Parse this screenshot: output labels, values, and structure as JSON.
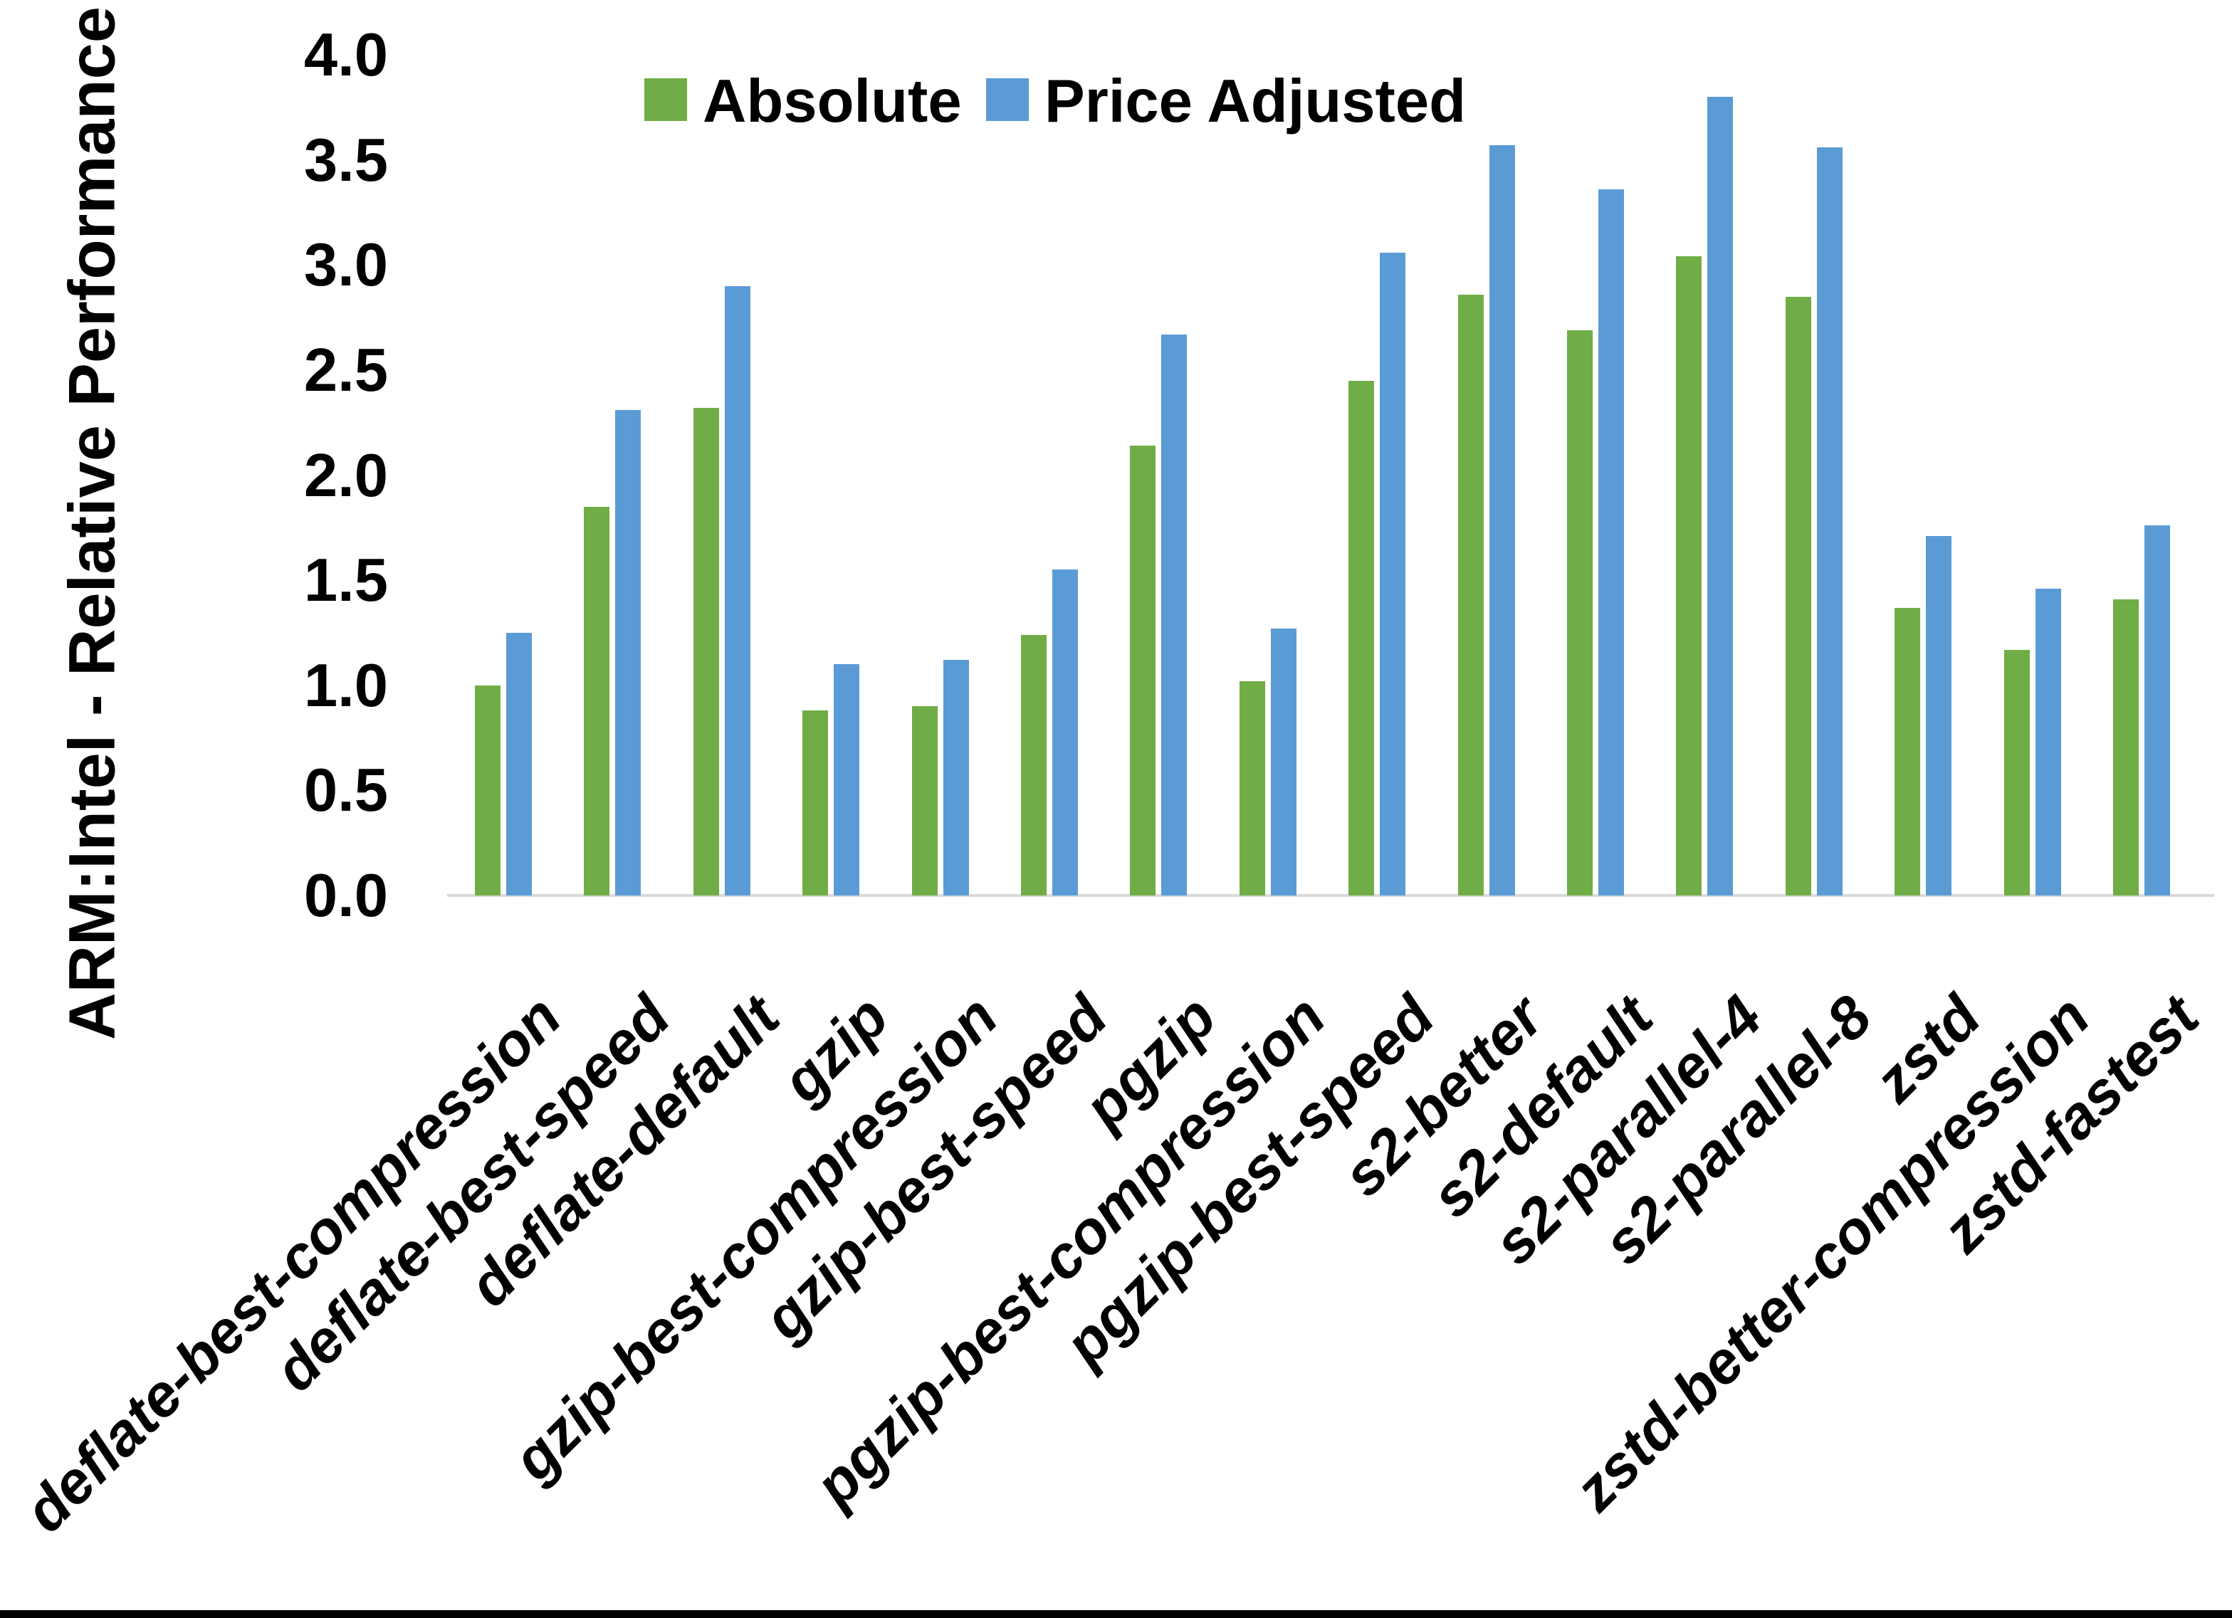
{
  "chart_data": {
    "type": "bar",
    "title": "",
    "ylabel": "ARM:Intel - Relative Performance",
    "xlabel": "",
    "ylim": [
      0,
      4
    ],
    "yticks": [
      "0.0",
      "0.5",
      "1.0",
      "1.5",
      "2.0",
      "2.5",
      "3.0",
      "3.5",
      "4.0"
    ],
    "grid": false,
    "legend_position": "top-center",
    "categories": [
      "deflate-best-compression",
      "deflate-best-speed",
      "deflate-default",
      "gzip",
      "gzip-best-compression",
      "gzip-best-speed",
      "pgzip",
      "pgzip-best-compression",
      "pgzip-best-speed",
      "s2-better",
      "s2-default",
      "s2-parallel-4",
      "s2-parallel-8",
      "zstd",
      "zstd-better-compression",
      "zstd-fastest"
    ],
    "series": [
      {
        "name": "Absolute",
        "color": "#70AD47",
        "values": [
          1.0,
          1.85,
          2.32,
          0.88,
          0.9,
          1.24,
          2.14,
          1.02,
          2.45,
          2.86,
          2.69,
          3.04,
          2.85,
          1.37,
          1.17,
          1.41
        ]
      },
      {
        "name": "Price Adjusted",
        "color": "#5B9BD5",
        "values": [
          1.25,
          2.31,
          2.9,
          1.1,
          1.12,
          1.55,
          2.67,
          1.27,
          3.06,
          3.57,
          3.36,
          3.8,
          3.56,
          1.71,
          1.46,
          1.76
        ]
      }
    ],
    "axis_line_color": "#D9D9D9",
    "text_color": "#000000"
  }
}
